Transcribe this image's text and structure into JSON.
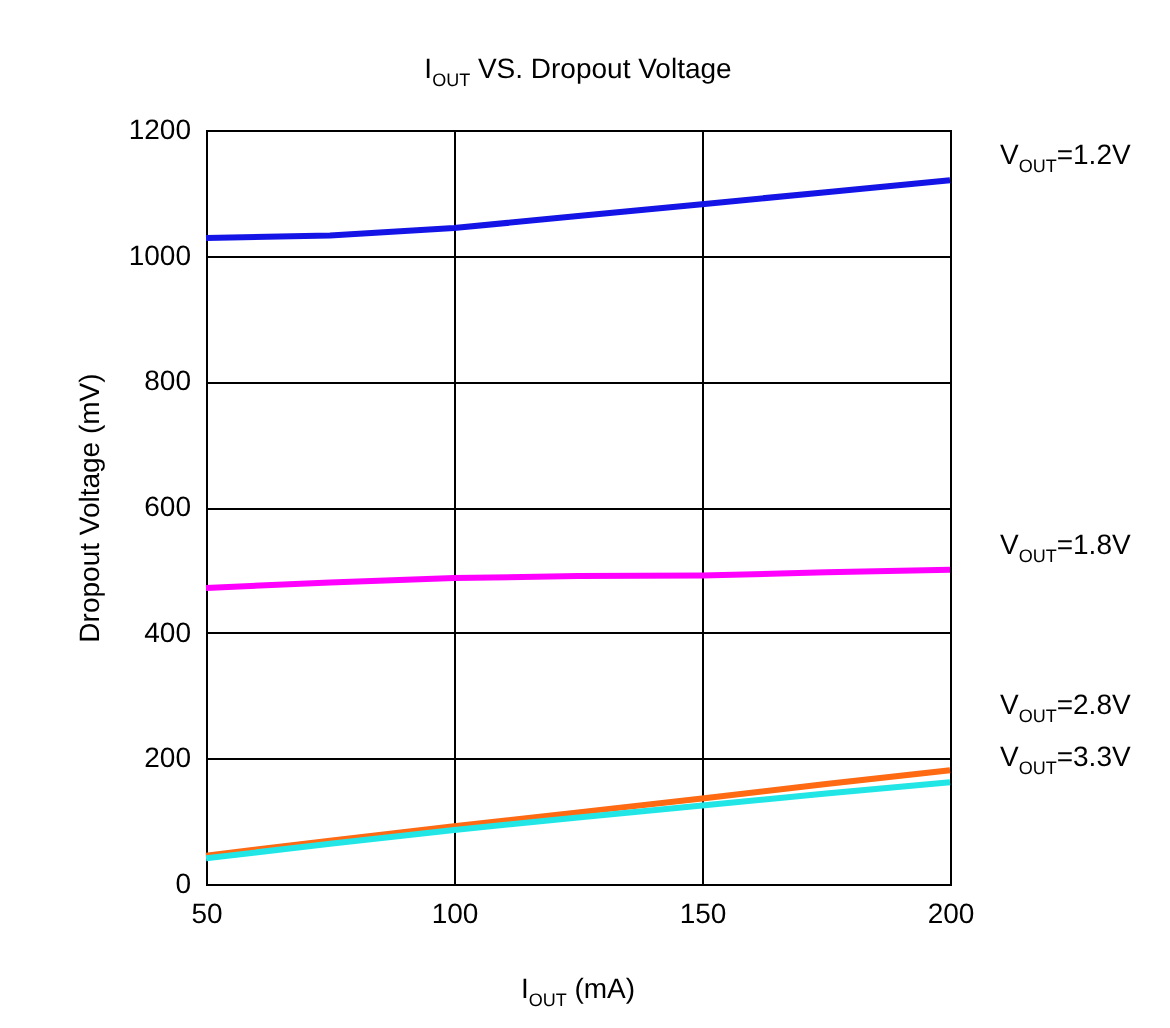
{
  "chart_data": {
    "type": "line",
    "title": "I$_{OUT}$ VS. Dropout Voltage",
    "xlabel": "I$_{OUT}$ (mA)",
    "ylabel": "Dropout Voltage (mV)",
    "x": [
      50,
      75,
      100,
      125,
      150,
      175,
      200
    ],
    "series": [
      {
        "name": "V$_{OUT}$=1.2V",
        "color": "#1414e6",
        "values": [
          1028,
          1032,
          1044,
          1063,
          1082,
          1101,
          1120
        ]
      },
      {
        "name": "V$_{OUT}$=1.8V",
        "color": "#ff00ff",
        "values": [
          471,
          480,
          487,
          490,
          491,
          496,
          500
        ]
      },
      {
        "name": "V$_{OUT}$=2.8V",
        "color": "#ff6a13",
        "values": [
          45,
          69,
          92,
          114,
          136,
          159,
          181
        ]
      },
      {
        "name": "V$_{OUT}$=3.3V",
        "color": "#22e6e6",
        "values": [
          41,
          64,
          86,
          106,
          125,
          144,
          162
        ]
      }
    ],
    "xlim": [
      50,
      200
    ],
    "xticks": [
      50,
      100,
      150,
      200
    ],
    "ylim": [
      0,
      1200
    ],
    "yticks": [
      0,
      200,
      400,
      600,
      800,
      1000,
      1200
    ],
    "grid": true,
    "legend": false
  }
}
